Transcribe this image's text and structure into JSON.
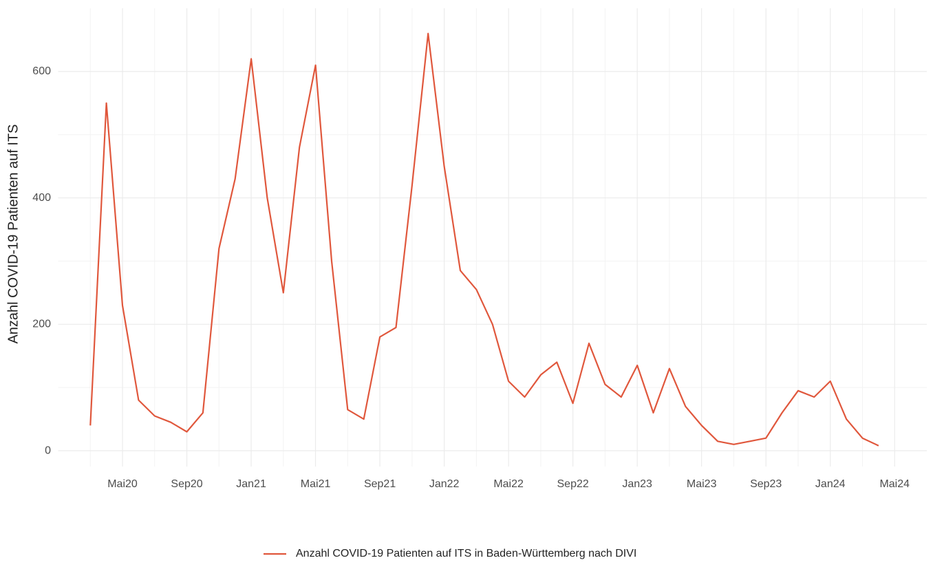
{
  "chart_data": {
    "type": "line",
    "y_label": "Anzahl COVID-19 Patienten auf ITS",
    "x": [
      "2020-03",
      "2020-04",
      "2020-05",
      "2020-06",
      "2020-07",
      "2020-08",
      "2020-09",
      "2020-10",
      "2020-11",
      "2020-12",
      "2021-01",
      "2021-02",
      "2021-03",
      "2021-04",
      "2021-05",
      "2021-06",
      "2021-07",
      "2021-08",
      "2021-09",
      "2021-10",
      "2021-11",
      "2021-12",
      "2022-01",
      "2022-02",
      "2022-03",
      "2022-04",
      "2022-05",
      "2022-06",
      "2022-07",
      "2022-08",
      "2022-09",
      "2022-10",
      "2022-11",
      "2022-12",
      "2023-01",
      "2023-02",
      "2023-03",
      "2023-04",
      "2023-05",
      "2023-06",
      "2023-07",
      "2023-08",
      "2023-09",
      "2023-10",
      "2023-11",
      "2023-12",
      "2024-01",
      "2024-02",
      "2024-03",
      "2024-04"
    ],
    "series": [
      {
        "name": "Anzahl COVID-19 Patienten auf ITS in Baden-Württemberg nach DIVI",
        "color": "#e0573c",
        "values": [
          40,
          550,
          230,
          80,
          55,
          45,
          30,
          60,
          320,
          430,
          620,
          400,
          250,
          480,
          610,
          300,
          65,
          50,
          180,
          195,
          420,
          660,
          450,
          285,
          255,
          200,
          110,
          85,
          120,
          140,
          75,
          170,
          105,
          85,
          135,
          60,
          130,
          70,
          40,
          15,
          10,
          15,
          20,
          60,
          95,
          85,
          110,
          50,
          20,
          8
        ]
      }
    ],
    "xlim": [
      "2020-01",
      "2024-07"
    ],
    "xticks": [
      {
        "value": "2020-05",
        "label": "Mai20"
      },
      {
        "value": "2020-09",
        "label": "Sep20"
      },
      {
        "value": "2021-01",
        "label": "Jan21"
      },
      {
        "value": "2021-05",
        "label": "Mai21"
      },
      {
        "value": "2021-09",
        "label": "Sep21"
      },
      {
        "value": "2022-01",
        "label": "Jan22"
      },
      {
        "value": "2022-05",
        "label": "Mai22"
      },
      {
        "value": "2022-09",
        "label": "Sep22"
      },
      {
        "value": "2023-01",
        "label": "Jan23"
      },
      {
        "value": "2023-05",
        "label": "Mai23"
      },
      {
        "value": "2023-09",
        "label": "Sep23"
      },
      {
        "value": "2024-01",
        "label": "Jan24"
      },
      {
        "value": "2024-05",
        "label": "Mai24"
      }
    ],
    "x_minor_ticks": [
      "2020-03",
      "2020-07",
      "2020-11",
      "2021-03",
      "2021-07",
      "2021-11",
      "2022-03",
      "2022-07",
      "2022-11",
      "2023-03",
      "2023-07",
      "2023-11",
      "2024-03"
    ],
    "ylim": [
      -25,
      700
    ],
    "yticks": [
      0,
      200,
      400,
      600
    ],
    "y_minor_ticks": [
      100,
      300,
      500
    ],
    "grid": true,
    "legend": "bottom"
  }
}
